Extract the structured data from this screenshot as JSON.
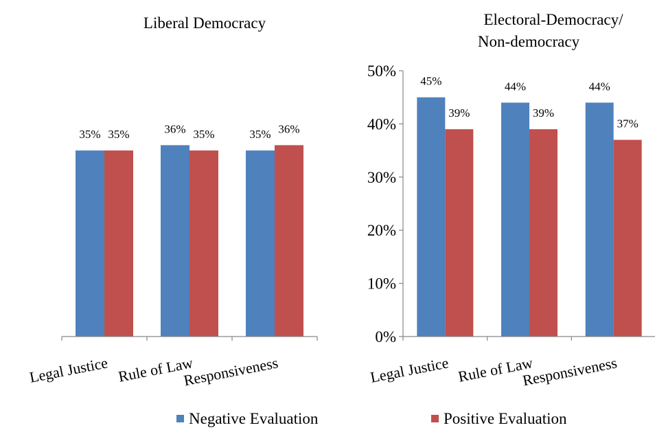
{
  "colors": {
    "negative": "#4F81BD",
    "positive": "#C0504D",
    "axis": "#868686"
  },
  "chart_data": [
    {
      "type": "bar",
      "title": "Liberal Democracy",
      "categories": [
        "Legal Justice",
        "Rule of Law",
        "Responsiveness"
      ],
      "series": [
        {
          "name": "Negative Evaluation",
          "values": [
            35,
            36,
            35
          ],
          "labels": [
            "35%",
            "36%",
            "35%"
          ]
        },
        {
          "name": "Positive Evaluation",
          "values": [
            35,
            35,
            36
          ],
          "labels": [
            "35%",
            "35%",
            "36%"
          ]
        }
      ],
      "ylim": [
        0,
        50
      ],
      "yaxis_visible": false
    },
    {
      "type": "bar",
      "title_lines": [
        "Electoral-Democracy/",
        "Non-democracy"
      ],
      "categories": [
        "Legal Justice",
        "Rule of Law",
        "Responsiveness"
      ],
      "series": [
        {
          "name": "Negative Evaluation",
          "values": [
            45,
            44,
            44
          ],
          "labels": [
            "45%",
            "44%",
            "44%"
          ]
        },
        {
          "name": "Positive Evaluation",
          "values": [
            39,
            39,
            37
          ],
          "labels": [
            "39%",
            "39%",
            "37%"
          ]
        }
      ],
      "ylim": [
        0,
        50
      ],
      "yticks": [
        "0%",
        "10%",
        "20%",
        "30%",
        "40%",
        "50%"
      ],
      "yaxis_visible": true
    }
  ],
  "legend": {
    "position": "bottom",
    "items": [
      "Negative Evaluation",
      "Positive Evaluation"
    ]
  }
}
